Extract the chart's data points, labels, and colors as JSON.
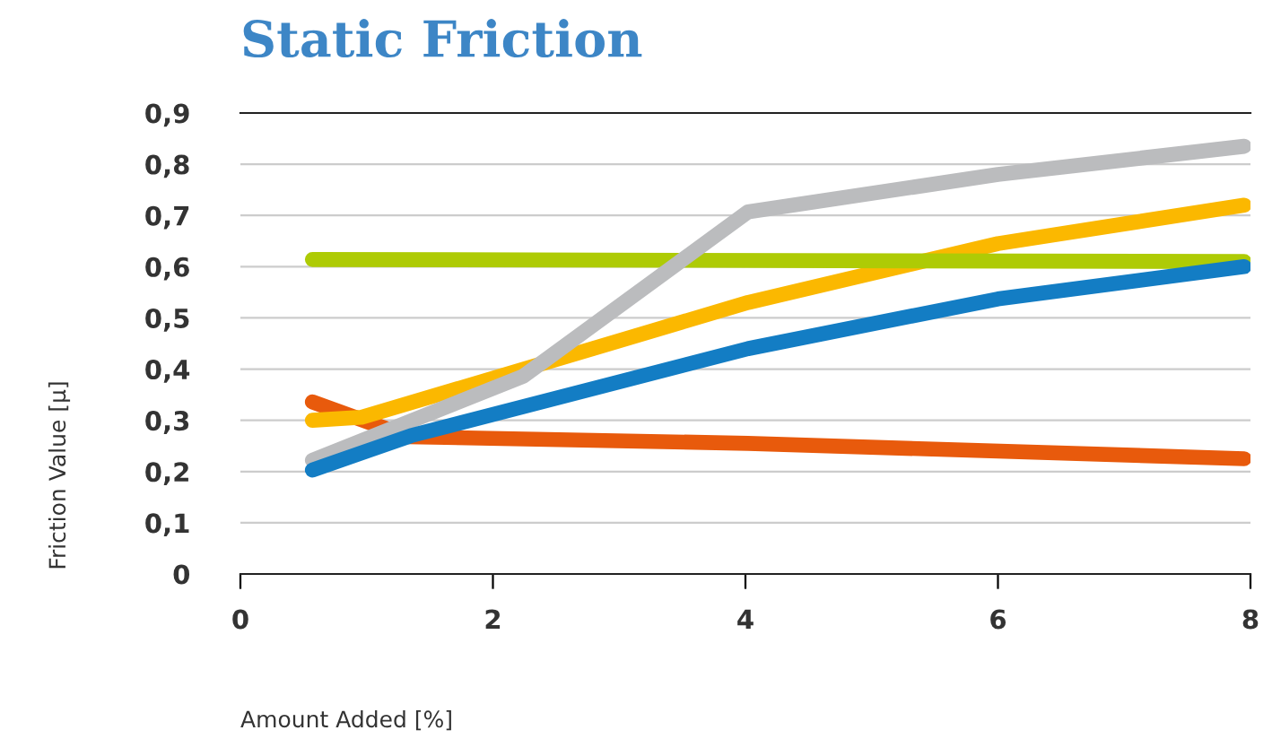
{
  "chart_data": {
    "type": "line",
    "title": "Static Friction",
    "xlabel": "Amount Added [%]",
    "ylabel": "Friction Value [µ]",
    "xlim": [
      0,
      8
    ],
    "xticks": [
      0,
      2,
      4,
      6,
      8
    ],
    "ylim": [
      0,
      0.9
    ],
    "yticks": [
      {
        "value": 0,
        "label": "0"
      },
      {
        "value": 0.1,
        "label": "0,1"
      },
      {
        "value": 0.2,
        "label": "0,2"
      },
      {
        "value": 0.3,
        "label": "0,3"
      },
      {
        "value": 0.4,
        "label": "0,4"
      },
      {
        "value": 0.5,
        "label": "0,5"
      },
      {
        "value": 0.6,
        "label": "0,6"
      },
      {
        "value": 0.7,
        "label": "0,7"
      },
      {
        "value": 0.8,
        "label": "0,8"
      },
      {
        "value": 0.9,
        "label": "0,9"
      }
    ],
    "grid": "y",
    "line_style": "solid",
    "marker": "none",
    "series": [
      {
        "color": "#e85a0c",
        "x": [
          0.57,
          1.33,
          4.02,
          7.95
        ],
        "values": [
          0.336,
          0.268,
          0.255,
          0.225
        ]
      },
      {
        "color": "#fbb800",
        "x": [
          0.57,
          0.96,
          2.79,
          4.02,
          6,
          7.95
        ],
        "values": [
          0.3,
          0.306,
          0.44,
          0.53,
          0.645,
          0.72
        ]
      },
      {
        "color": "#aecb05",
        "x": [
          0.57,
          7.95
        ],
        "values": [
          0.614,
          0.61
        ]
      },
      {
        "color": "#bbbcbe",
        "x": [
          0.57,
          2.24,
          4.02,
          6,
          7.95
        ],
        "values": [
          0.222,
          0.386,
          0.707,
          0.78,
          0.835
        ]
      },
      {
        "color": "#137dc4",
        "x": [
          0.57,
          1.35,
          4.02,
          6,
          7.95
        ],
        "values": [
          0.203,
          0.27,
          0.44,
          0.537,
          0.6
        ]
      }
    ]
  }
}
